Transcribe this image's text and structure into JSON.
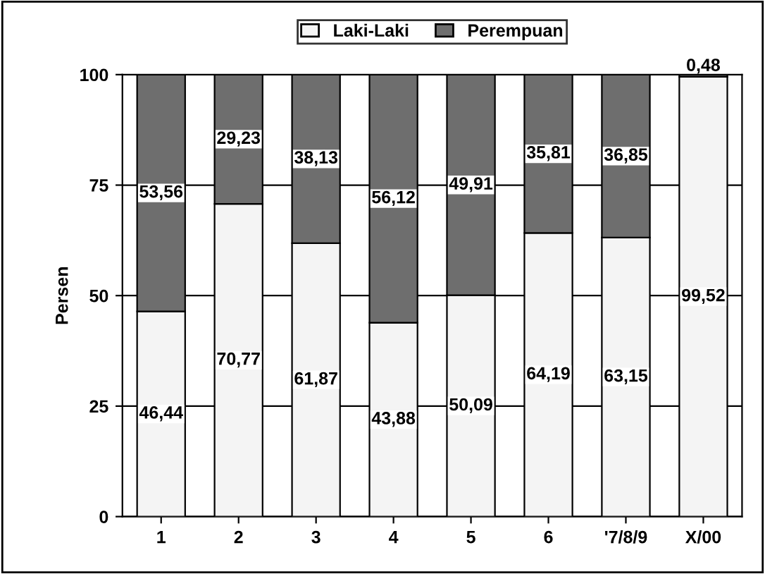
{
  "chart_data": {
    "type": "bar",
    "stacked": true,
    "ylabel": "Persen",
    "categories": [
      "1",
      "2",
      "3",
      "4",
      "5",
      "6",
      "'7/8/9",
      "X/00"
    ],
    "series": [
      {
        "name": "Laki-Laki",
        "color": "#f4f4f4",
        "values": [
          46.44,
          70.77,
          61.87,
          43.88,
          50.09,
          64.19,
          63.15,
          99.52
        ],
        "value_labels": [
          "46,44",
          "70,77",
          "61,87",
          "43,88",
          "50,09",
          "64,19",
          "63,15",
          "99,52"
        ]
      },
      {
        "name": "Perempuan",
        "color": "#6e6e6e",
        "values": [
          53.56,
          29.23,
          38.13,
          56.12,
          49.91,
          35.81,
          36.85,
          0.48
        ],
        "value_labels": [
          "53,56",
          "29,23",
          "38,13",
          "56,12",
          "49,91",
          "35,81",
          "36,85",
          "0,48"
        ]
      }
    ],
    "ylim": [
      0,
      100
    ],
    "yticks": [
      0,
      25,
      50,
      75,
      100
    ],
    "grid": "y",
    "legend": "top"
  }
}
